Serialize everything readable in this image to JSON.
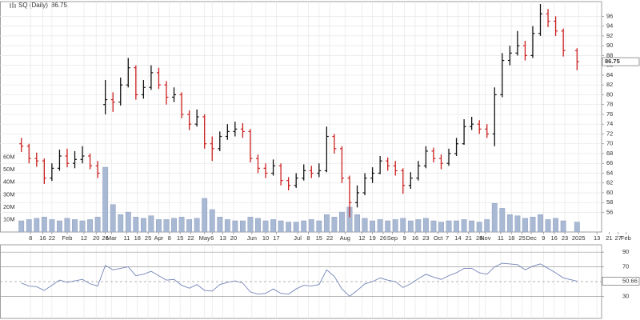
{
  "chart_data": [
    {
      "type": "ohlc",
      "title": "SQ (Daily)",
      "x": [
        2,
        7,
        12,
        17,
        22,
        27,
        32,
        37,
        42,
        47,
        52,
        57,
        62,
        67,
        72,
        77,
        82,
        87,
        92,
        97,
        102,
        107,
        112,
        117,
        122,
        127,
        132,
        137,
        142,
        147,
        152,
        157,
        162,
        167,
        172,
        177,
        182,
        187,
        192,
        197,
        202,
        207,
        212,
        217,
        222,
        227,
        232,
        237,
        242,
        247,
        252,
        257,
        262,
        267,
        272,
        277,
        282,
        287,
        292,
        297,
        302,
        307,
        312,
        317,
        322,
        327,
        332,
        337,
        342,
        347,
        352,
        357,
        366
      ],
      "open": [
        70.0,
        69.5,
        67.0,
        66.5,
        63.0,
        65.0,
        67.5,
        66.0,
        66.8,
        67.5,
        65.5,
        78.0,
        79.0,
        78.5,
        82.0,
        85.5,
        80.0,
        81.5,
        84.5,
        82.0,
        79.5,
        80.0,
        76.0,
        74.0,
        75.5,
        70.0,
        69.0,
        71.5,
        72.5,
        73.0,
        72.5,
        67.0,
        65.0,
        64.0,
        65.5,
        62.5,
        61.5,
        63.0,
        64.5,
        64.0,
        64.5,
        71.5,
        69.0,
        63.0,
        58.0,
        60.0,
        63.0,
        64.0,
        66.5,
        65.5,
        64.5,
        61.5,
        63.0,
        65.5,
        68.5,
        67.0,
        66.0,
        68.0,
        70.0,
        73.5,
        74.0,
        73.0,
        72.0,
        80.0,
        87.0,
        88.5,
        90.0,
        88.0,
        92.5,
        96.5,
        95.0,
        93.0,
        89.0
      ],
      "high": [
        71.2,
        70.0,
        68.2,
        67.0,
        66.0,
        68.8,
        69.0,
        68.5,
        69.5,
        68.0,
        66.5,
        83.0,
        80.5,
        83.5,
        87.5,
        86.0,
        83.0,
        86.0,
        85.5,
        82.8,
        81.5,
        80.5,
        76.8,
        77.0,
        76.0,
        71.5,
        72.5,
        74.0,
        74.5,
        74.2,
        73.0,
        67.8,
        66.0,
        66.8,
        66.0,
        63.2,
        64.0,
        65.8,
        65.5,
        66.0,
        73.5,
        72.0,
        69.5,
        63.5,
        61.5,
        64.0,
        65.2,
        67.5,
        67.2,
        66.5,
        65.0,
        64.2,
        66.5,
        69.5,
        69.2,
        67.8,
        69.0,
        71.2,
        75.0,
        75.5,
        74.8,
        74.0,
        81.5,
        88.5,
        90.0,
        93.0,
        91.0,
        94.0,
        98.5,
        97.5,
        96.0,
        93.5,
        89.5
      ],
      "low": [
        68.3,
        66.0,
        65.3,
        61.8,
        62.4,
        64.5,
        65.2,
        65.0,
        66.0,
        64.8,
        63.0,
        76.0,
        76.5,
        77.8,
        81.5,
        79.0,
        79.2,
        81.0,
        81.2,
        78.0,
        78.5,
        75.2,
        72.8,
        73.5,
        69.0,
        66.5,
        68.5,
        70.8,
        71.5,
        71.2,
        66.2,
        64.0,
        63.0,
        63.5,
        61.5,
        60.5,
        61.0,
        62.5,
        63.0,
        63.2,
        64.2,
        68.0,
        62.0,
        55.0,
        57.0,
        59.5,
        62.0,
        63.8,
        64.5,
        63.5,
        59.8,
        60.8,
        62.5,
        65.0,
        66.2,
        64.8,
        65.5,
        67.5,
        69.8,
        72.8,
        72.0,
        71.2,
        69.5,
        79.5,
        86.0,
        88.0,
        87.0,
        87.5,
        92.0,
        93.8,
        92.0,
        87.8,
        85.0
      ],
      "close": [
        69.5,
        67.0,
        66.5,
        63.0,
        65.0,
        67.5,
        66.0,
        66.8,
        67.5,
        65.5,
        64.0,
        79.0,
        78.5,
        82.0,
        85.5,
        80.0,
        81.5,
        84.5,
        82.0,
        79.5,
        80.0,
        76.0,
        74.0,
        75.5,
        70.0,
        69.0,
        71.5,
        72.5,
        73.0,
        72.5,
        67.0,
        65.0,
        64.0,
        65.5,
        62.5,
        61.5,
        63.0,
        64.5,
        64.0,
        64.5,
        71.5,
        69.0,
        63.0,
        58.0,
        60.0,
        63.0,
        64.0,
        66.5,
        65.5,
        64.5,
        61.5,
        63.0,
        65.5,
        68.5,
        67.0,
        66.0,
        68.0,
        70.0,
        73.5,
        74.0,
        73.0,
        72.0,
        80.0,
        87.0,
        88.5,
        90.0,
        88.0,
        92.5,
        96.5,
        95.0,
        93.0,
        89.0,
        86.75
      ],
      "up_color": "#111111",
      "down_color": "#cc1f1f",
      "volume": [
        9,
        10,
        11,
        12,
        10,
        9,
        11,
        10,
        9,
        10,
        12,
        52,
        22,
        14,
        16,
        12,
        11,
        13,
        10,
        10,
        11,
        12,
        10,
        11,
        27,
        18,
        12,
        10,
        9,
        9,
        12,
        11,
        9,
        10,
        9,
        8,
        8,
        9,
        10,
        9,
        14,
        12,
        16,
        20,
        14,
        11,
        9,
        10,
        9,
        10,
        11,
        9,
        10,
        11,
        9,
        8,
        9,
        9,
        10,
        9,
        8,
        10,
        23,
        19,
        14,
        13,
        11,
        12,
        14,
        10,
        11,
        9,
        8
      ],
      "volume_color": "#a9b9d3",
      "xlim": [
        -12,
        402
      ],
      "xticks": [
        8,
        16,
        22,
        {
          "value": 32,
          "label": "Feb"
        },
        {
          "value": 43,
          "label": "12"
        },
        {
          "value": 51,
          "label": "20"
        },
        {
          "value": 57,
          "label": "26"
        },
        {
          "value": 61,
          "label": "Mar"
        },
        {
          "value": 71,
          "label": "11"
        },
        {
          "value": 78,
          "label": "18"
        },
        {
          "value": 85,
          "label": "25"
        },
        {
          "value": 92,
          "label": "Apr"
        },
        {
          "value": 99,
          "label": "8"
        },
        {
          "value": 106,
          "label": "15"
        },
        {
          "value": 113,
          "label": "22"
        },
        {
          "value": 122,
          "label": "May"
        },
        {
          "value": 127,
          "label": "6"
        },
        {
          "value": 134,
          "label": "13"
        },
        {
          "value": 141,
          "label": "20"
        },
        {
          "value": 153,
          "label": "Jun"
        },
        {
          "value": 162,
          "label": "10"
        },
        {
          "value": 169,
          "label": "17"
        },
        {
          "value": 183,
          "label": "Jul"
        },
        {
          "value": 190,
          "label": "8"
        },
        {
          "value": 197,
          "label": "15"
        },
        {
          "value": 204,
          "label": "22"
        },
        {
          "value": 214,
          "label": "Aug"
        },
        {
          "value": 225,
          "label": "12"
        },
        {
          "value": 232,
          "label": "19"
        },
        {
          "value": 239,
          "label": "26"
        },
        {
          "value": 245,
          "label": "Sep"
        },
        {
          "value": 253,
          "label": "9"
        },
        {
          "value": 260,
          "label": "16"
        },
        {
          "value": 267,
          "label": "23"
        },
        {
          "value": 275,
          "label": "Oct"
        },
        {
          "value": 281,
          "label": "7"
        },
        {
          "value": 288,
          "label": "14"
        },
        {
          "value": 295,
          "label": "21"
        },
        {
          "value": 302,
          "label": "28"
        },
        {
          "value": 306,
          "label": "Nov"
        },
        {
          "value": 316,
          "label": "11"
        },
        {
          "value": 323,
          "label": "18"
        },
        {
          "value": 330,
          "label": "25"
        },
        {
          "value": 336,
          "label": "Dec"
        },
        {
          "value": 344,
          "label": "9"
        },
        {
          "value": 351,
          "label": "16"
        },
        {
          "value": 358,
          "label": "23"
        },
        {
          "value": 367,
          "label": "2025"
        },
        {
          "value": 379,
          "label": "13"
        },
        {
          "value": 387,
          "label": "21"
        },
        {
          "value": 393,
          "label": "27"
        },
        {
          "value": 398,
          "label": "Feb"
        }
      ],
      "ylim": [
        52,
        99
      ],
      "yticks": [
        56,
        58,
        60,
        62,
        64,
        66,
        68,
        70,
        72,
        74,
        76,
        78,
        80,
        82,
        84,
        86,
        88,
        90,
        92,
        94,
        96
      ],
      "y2lim": [
        0,
        185
      ],
      "y2ticks": [
        {
          "value": 10,
          "label": "10M"
        },
        {
          "value": 20,
          "label": "20M"
        },
        {
          "value": 30,
          "label": "30M"
        },
        {
          "value": 40,
          "label": "40M"
        },
        {
          "value": 50,
          "label": "50M"
        },
        {
          "value": 60,
          "label": "60M"
        }
      ],
      "grid": true
    },
    {
      "type": "line",
      "x": [
        2,
        7,
        12,
        17,
        22,
        27,
        32,
        37,
        42,
        47,
        52,
        57,
        62,
        67,
        72,
        77,
        82,
        87,
        92,
        97,
        102,
        107,
        112,
        117,
        122,
        127,
        132,
        137,
        142,
        147,
        152,
        157,
        162,
        167,
        172,
        177,
        182,
        187,
        192,
        197,
        202,
        207,
        212,
        217,
        222,
        227,
        232,
        237,
        242,
        247,
        252,
        257,
        262,
        267,
        272,
        277,
        282,
        287,
        292,
        297,
        302,
        307,
        312,
        317,
        322,
        327,
        332,
        337,
        342,
        347,
        352,
        357,
        366
      ],
      "values": [
        48,
        44,
        43,
        38,
        45,
        52,
        49,
        51,
        53,
        47,
        44,
        72,
        66,
        68,
        70,
        58,
        60,
        64,
        58,
        52,
        53,
        45,
        41,
        46,
        38,
        37,
        46,
        49,
        51,
        48,
        36,
        33,
        34,
        40,
        34,
        33,
        40,
        45,
        44,
        46,
        66,
        57,
        40,
        30,
        38,
        47,
        50,
        55,
        52,
        50,
        42,
        47,
        54,
        60,
        56,
        53,
        58,
        62,
        68,
        68,
        62,
        60,
        70,
        75,
        74,
        73,
        66,
        71,
        74,
        68,
        62,
        55,
        50.66
      ],
      "color": "#7384b8",
      "xlim": [
        -12,
        402
      ],
      "ylim": [
        0,
        100
      ],
      "yticks": [
        30,
        70,
        90
      ],
      "grid": true
    }
  ]
}
